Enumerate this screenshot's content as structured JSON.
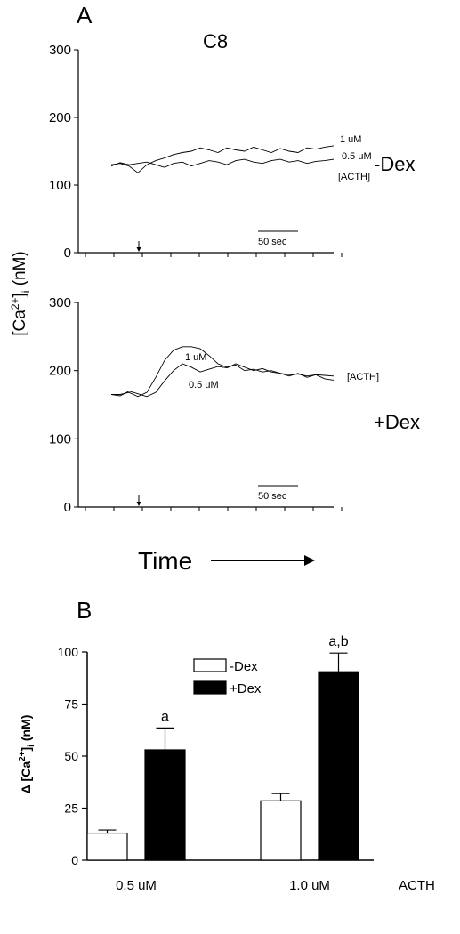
{
  "panel_a": {
    "letter": "A",
    "title": "C8",
    "ylabel_base": "[Ca",
    "ylabel_sup": "2+",
    "ylabel_close": "]",
    "ylabel_sub": "i",
    "ylabel_unit": " (nM)",
    "xlabel": "Time",
    "arrow_text": "————→",
    "scalebar_label": "50 sec",
    "legend_title": "[ACTH]"
  },
  "panel_b": {
    "letter": "B",
    "ylabel_prefix": "Δ [Ca",
    "ylabel_sup": "2+",
    "ylabel_close": "]",
    "ylabel_sub": "i",
    "ylabel_unit": " (nM)",
    "xaxis_suffix": "ACTH"
  },
  "chart_data": [
    {
      "type": "line",
      "panel": "A-top",
      "label": "-Dex",
      "y_ticks": [
        0,
        100,
        200,
        300
      ],
      "ylim": [
        0,
        300
      ],
      "series": [
        {
          "name": "1 uM",
          "x": [
            0,
            10,
            20,
            30,
            40,
            50,
            60,
            70,
            80,
            90,
            100,
            110,
            120,
            130,
            140,
            150,
            160,
            170,
            180,
            190,
            200,
            210,
            220,
            230,
            240,
            250
          ],
          "y": [
            130,
            132,
            128,
            118,
            130,
            136,
            140,
            145,
            148,
            150,
            155,
            152,
            148,
            155,
            152,
            150,
            156,
            152,
            148,
            154,
            150,
            148,
            155,
            153,
            156,
            158
          ]
        },
        {
          "name": "0.5 uM",
          "x": [
            0,
            10,
            20,
            30,
            40,
            50,
            60,
            70,
            80,
            90,
            100,
            110,
            120,
            130,
            140,
            150,
            160,
            170,
            180,
            190,
            200,
            210,
            220,
            230,
            240,
            250
          ],
          "y": [
            128,
            133,
            130,
            132,
            134,
            130,
            126,
            132,
            134,
            128,
            132,
            136,
            134,
            130,
            136,
            138,
            134,
            132,
            136,
            138,
            134,
            136,
            132,
            135,
            136,
            138
          ]
        }
      ]
    },
    {
      "type": "line",
      "panel": "A-bottom",
      "label": "+Dex",
      "y_ticks": [
        0,
        100,
        200,
        300
      ],
      "ylim": [
        0,
        300
      ],
      "series": [
        {
          "name": "1 uM",
          "x": [
            0,
            10,
            20,
            30,
            40,
            50,
            60,
            70,
            80,
            90,
            100,
            110,
            120,
            130,
            140,
            150,
            160,
            170,
            180,
            190,
            200,
            210,
            220,
            230,
            240,
            250
          ],
          "y": [
            165,
            165,
            168,
            162,
            168,
            190,
            215,
            230,
            235,
            235,
            232,
            222,
            210,
            205,
            208,
            200,
            202,
            198,
            200,
            196,
            194,
            195,
            192,
            194,
            193,
            192
          ]
        },
        {
          "name": "0.5 uM",
          "x": [
            0,
            10,
            20,
            30,
            40,
            50,
            60,
            70,
            80,
            90,
            100,
            110,
            120,
            130,
            140,
            150,
            160,
            170,
            180,
            190,
            200,
            210,
            220,
            230,
            240,
            250
          ],
          "y": [
            165,
            163,
            170,
            166,
            162,
            168,
            185,
            200,
            210,
            205,
            198,
            202,
            206,
            204,
            210,
            205,
            200,
            203,
            198,
            196,
            192,
            196,
            190,
            194,
            188,
            186
          ]
        }
      ]
    },
    {
      "type": "bar",
      "panel": "B",
      "categories": [
        "0.5 uM",
        "1.0 uM"
      ],
      "series": [
        {
          "name": "-Dex",
          "values": [
            13,
            28.5
          ],
          "errors": [
            1.5,
            3.5
          ],
          "annotations": [
            "",
            ""
          ]
        },
        {
          "name": "+Dex",
          "values": [
            53,
            90.5
          ],
          "errors": [
            10.5,
            9
          ],
          "annotations": [
            "a",
            "a,b"
          ]
        }
      ],
      "ylim": [
        0,
        100
      ],
      "y_ticks": [
        0,
        25,
        50,
        75,
        100
      ]
    }
  ]
}
